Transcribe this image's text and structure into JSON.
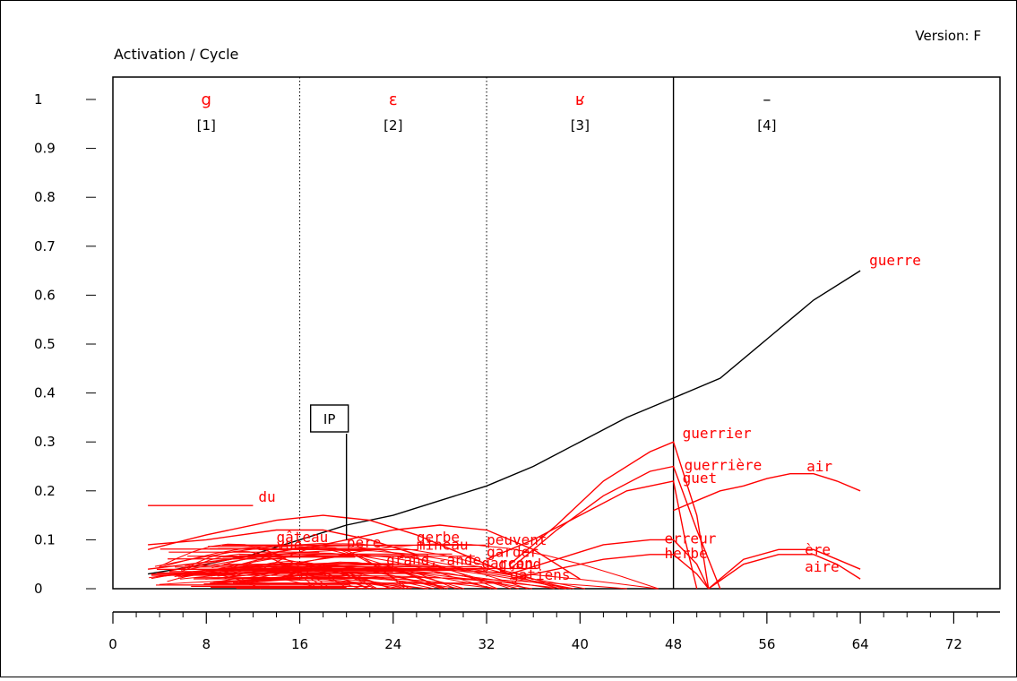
{
  "header": {
    "version": "Version: F",
    "ylabel": "Activation / Cycle"
  },
  "chart_data": {
    "type": "line",
    "ylabel": "Activation / Cycle",
    "xlim": [
      0,
      76
    ],
    "ylim": [
      0,
      1.05
    ],
    "x_ticks": [
      0,
      8,
      16,
      24,
      32,
      40,
      48,
      56,
      64,
      72
    ],
    "y_ticks": [
      0,
      0.1,
      0.2,
      0.3,
      0.4,
      0.5,
      0.6,
      0.7,
      0.8,
      0.9,
      1
    ],
    "y_tick_labels": [
      "0",
      "0.1",
      "0.2",
      "0.3",
      "0.4",
      "0.5",
      "0.6",
      "0.7",
      "0.8",
      "0.9",
      "1"
    ],
    "grid": false,
    "phonemes": [
      {
        "symbol": "g",
        "index": "[1]",
        "x": 8,
        "color": "#ff0000"
      },
      {
        "symbol": "ɛ",
        "index": "[2]",
        "x": 24,
        "color": "#ff0000"
      },
      {
        "symbol": "ʁ",
        "index": "[3]",
        "x": 40,
        "color": "#ff0000"
      },
      {
        "symbol": "–",
        "index": "[4]",
        "x": 56,
        "color": "#000000"
      }
    ],
    "boundaries": [
      {
        "x": 16,
        "style": "dotted"
      },
      {
        "x": 32,
        "style": "dotted"
      },
      {
        "x": 48,
        "style": "solid"
      }
    ],
    "ip_marker": {
      "label": "IP",
      "x": 20,
      "y": 0.1
    },
    "series": [
      {
        "name": "guerre",
        "color": "#000000",
        "x": [
          3,
          8,
          12,
          16,
          20,
          24,
          28,
          32,
          36,
          40,
          44,
          48,
          52,
          56,
          60,
          64
        ],
        "y": [
          0.03,
          0.05,
          0.07,
          0.1,
          0.13,
          0.15,
          0.18,
          0.21,
          0.25,
          0.3,
          0.35,
          0.39,
          0.43,
          0.51,
          0.59,
          0.65
        ]
      },
      {
        "name": "du",
        "color": "#ff0000",
        "x": [
          3,
          12
        ],
        "y": [
          0.17,
          0.17
        ]
      },
      {
        "name": "grand,-ande",
        "color": "#ff0000",
        "x": [
          3,
          8,
          14,
          18,
          22,
          26,
          30,
          34
        ],
        "y": [
          0.08,
          0.11,
          0.14,
          0.15,
          0.14,
          0.11,
          0.07,
          0.03
        ]
      },
      {
        "name": "père",
        "color": "#ff0000",
        "x": [
          3,
          8,
          14,
          18,
          22,
          26
        ],
        "y": [
          0.09,
          0.1,
          0.12,
          0.12,
          0.1,
          0.07
        ]
      },
      {
        "name": "garçon",
        "color": "#ff0000",
        "x": [
          3,
          10,
          18,
          24,
          28,
          32,
          36,
          40
        ],
        "y": [
          0.04,
          0.06,
          0.09,
          0.12,
          0.13,
          0.12,
          0.08,
          0.02
        ]
      },
      {
        "name": "guerrier",
        "color": "#ff0000",
        "x": [
          34,
          38,
          42,
          46,
          48,
          50,
          51
        ],
        "y": [
          0.05,
          0.13,
          0.22,
          0.28,
          0.3,
          0.15,
          0.0
        ]
      },
      {
        "name": "guerrière",
        "color": "#ff0000",
        "x": [
          34,
          38,
          42,
          46,
          48,
          50,
          52
        ],
        "y": [
          0.04,
          0.12,
          0.19,
          0.24,
          0.25,
          0.12,
          0.0
        ]
      },
      {
        "name": "guet",
        "color": "#ff0000",
        "x": [
          32,
          36,
          40,
          44,
          48,
          49,
          50
        ],
        "y": [
          0.06,
          0.1,
          0.15,
          0.2,
          0.22,
          0.1,
          0.0
        ]
      },
      {
        "name": "air",
        "color": "#ff0000",
        "x": [
          48,
          50,
          52,
          54,
          56,
          58,
          60,
          62,
          64
        ],
        "y": [
          0.16,
          0.18,
          0.2,
          0.21,
          0.225,
          0.235,
          0.235,
          0.22,
          0.2
        ]
      },
      {
        "name": "erreur",
        "color": "#ff0000",
        "x": [
          34,
          38,
          42,
          46,
          48,
          50,
          51
        ],
        "y": [
          0.03,
          0.06,
          0.09,
          0.1,
          0.1,
          0.05,
          0.0
        ]
      },
      {
        "name": "herbe",
        "color": "#ff0000",
        "x": [
          34,
          38,
          42,
          46,
          48,
          50,
          51
        ],
        "y": [
          0.02,
          0.04,
          0.06,
          0.07,
          0.07,
          0.03,
          0.0
        ]
      },
      {
        "name": "ère",
        "color": "#ff0000",
        "x": [
          51,
          54,
          57,
          60,
          62,
          64
        ],
        "y": [
          0.0,
          0.06,
          0.08,
          0.08,
          0.06,
          0.04
        ]
      },
      {
        "name": "aire",
        "color": "#ff0000",
        "x": [
          51,
          54,
          57,
          60,
          62,
          64
        ],
        "y": [
          0.0,
          0.05,
          0.07,
          0.07,
          0.05,
          0.02
        ]
      }
    ],
    "clutter_labels": [
      {
        "text": "gâteau",
        "x": 14,
        "y": 0.095
      },
      {
        "text": "vue",
        "x": 14,
        "y": 0.08
      },
      {
        "text": "gerbe",
        "x": 26,
        "y": 0.095
      },
      {
        "text": "mineau",
        "x": 26,
        "y": 0.08
      },
      {
        "text": "garder",
        "x": 32,
        "y": 0.065
      },
      {
        "text": "grand",
        "x": 33,
        "y": 0.04
      },
      {
        "text": "gatiens",
        "x": 34,
        "y": 0.018
      },
      {
        "text": "peuvent",
        "x": 32,
        "y": 0.09
      }
    ]
  }
}
